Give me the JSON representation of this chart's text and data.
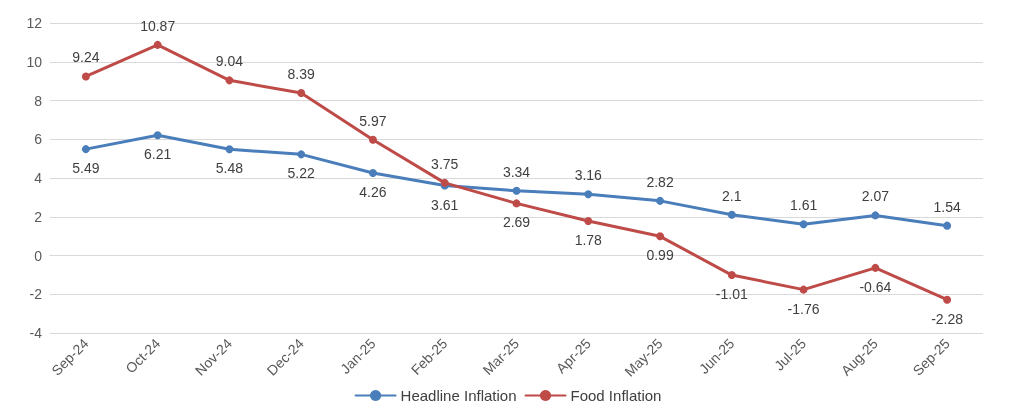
{
  "chart_data": {
    "type": "line",
    "categories": [
      "Sep-24",
      "Oct-24",
      "Nov-24",
      "Dec-24",
      "Jan-25",
      "Feb-25",
      "Mar-25",
      "Apr-25",
      "May-25",
      "Jun-25",
      "Jul-25",
      "Aug-25",
      "Sep-25"
    ],
    "series": [
      {
        "name": "Headline Inflation",
        "color": "#4a7ebb",
        "values": [
          5.49,
          6.21,
          5.48,
          5.22,
          4.26,
          3.61,
          3.34,
          3.16,
          2.82,
          2.1,
          1.61,
          2.07,
          1.54
        ]
      },
      {
        "name": "Food Inflation",
        "color": "#be4b48",
        "values": [
          9.24,
          10.87,
          9.04,
          8.39,
          5.97,
          3.75,
          2.69,
          1.78,
          0.99,
          -1.01,
          -1.76,
          -0.64,
          -2.28
        ]
      }
    ],
    "ylim": [
      -4,
      12
    ],
    "yticks": [
      -4,
      -2,
      0,
      2,
      4,
      6,
      8,
      10,
      12
    ],
    "grid": "y",
    "legend": "bottom",
    "marker": "circle",
    "line_style": "solid",
    "data_labels": true
  }
}
